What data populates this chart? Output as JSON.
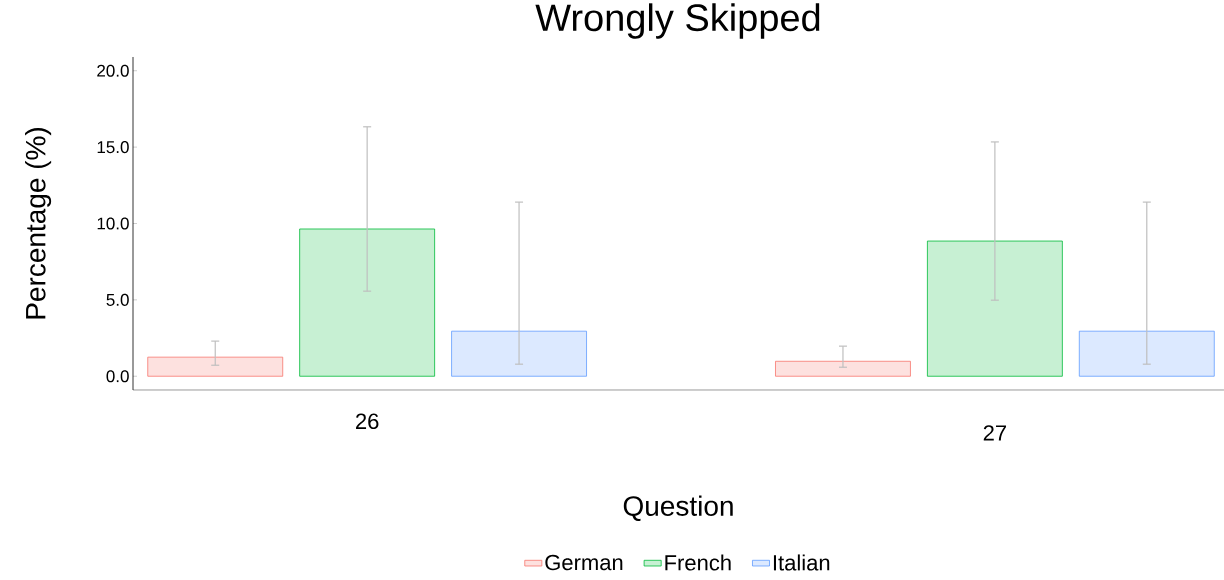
{
  "chart_data": {
    "type": "bar",
    "title": "Wrongly Skipped",
    "xlabel": "Question",
    "ylabel": "Percentage (%)",
    "categories": [
      "26",
      "27"
    ],
    "series": [
      {
        "name": "German",
        "color": "#f8766d",
        "values": [
          1.25,
          0.98
        ],
        "errors": [
          [
            0.72,
            2.3
          ],
          [
            0.59,
            1.97
          ]
        ]
      },
      {
        "name": "French",
        "color": "#00ba38",
        "values": [
          9.64,
          8.85
        ],
        "errors": [
          [
            5.57,
            16.33
          ],
          [
            4.98,
            15.34
          ]
        ]
      },
      {
        "name": "Italian",
        "color": "#619cff",
        "values": [
          2.95,
          2.95
        ],
        "errors": [
          [
            0.79,
            11.4
          ],
          [
            0.79,
            11.4
          ]
        ]
      }
    ],
    "ylim": [
      -0.9,
      20.9
    ],
    "yticks": [
      {
        "value": 0,
        "label": "0.0"
      },
      {
        "value": 5,
        "label": "5.0"
      },
      {
        "value": 10,
        "label": "10.0"
      },
      {
        "value": 15,
        "label": "15.0"
      },
      {
        "value": 20,
        "label": "20.0"
      }
    ],
    "legend": "bottom"
  }
}
